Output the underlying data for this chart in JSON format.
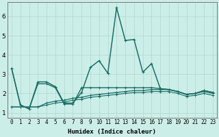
{
  "xlabel": "Humidex (Indice chaleur)",
  "background_color": "#cceee8",
  "grid_color": "#b0d5d0",
  "line_color": "#1a6e65",
  "xlim": [
    -0.5,
    23.5
  ],
  "ylim": [
    0.75,
    6.75
  ],
  "yticks": [
    1,
    2,
    3,
    4,
    5,
    6
  ],
  "xtick_labels": [
    "0",
    "1",
    "2",
    "3",
    "4",
    "5",
    "6",
    "7",
    "8",
    "9",
    "10",
    "11",
    "12",
    "13",
    "14",
    "15",
    "16",
    "17",
    "18",
    "19",
    "20",
    "21",
    "22",
    "23"
  ],
  "series": [
    [
      3.3,
      1.4,
      1.2,
      2.6,
      2.6,
      2.35,
      1.5,
      1.5,
      2.05,
      3.35,
      3.7,
      3.05,
      6.45,
      4.75,
      4.8,
      3.1,
      3.55,
      2.25,
      2.2,
      2.1,
      1.95,
      2.0,
      2.15,
      2.05
    ],
    [
      3.3,
      1.4,
      1.2,
      2.5,
      2.5,
      2.3,
      1.45,
      1.45,
      2.3,
      2.3,
      2.3,
      2.3,
      2.3,
      2.3,
      2.3,
      2.3,
      2.3,
      2.25,
      2.2,
      2.1,
      1.95,
      2.0,
      2.15,
      2.05
    ],
    [
      1.3,
      1.3,
      1.3,
      1.3,
      1.5,
      1.6,
      1.65,
      1.75,
      1.8,
      1.9,
      1.95,
      2.0,
      2.05,
      2.1,
      2.15,
      2.15,
      2.2,
      2.2,
      2.2,
      2.1,
      1.95,
      2.0,
      2.1,
      2.0
    ],
    [
      1.3,
      1.3,
      1.3,
      1.3,
      1.4,
      1.5,
      1.55,
      1.65,
      1.7,
      1.8,
      1.85,
      1.9,
      1.95,
      2.0,
      2.05,
      2.05,
      2.1,
      2.1,
      2.1,
      2.0,
      1.85,
      1.9,
      2.0,
      1.9
    ]
  ],
  "xlabel_fontsize": 6.5,
  "tick_fontsize": 5.5,
  "ytick_fontsize": 6.5
}
